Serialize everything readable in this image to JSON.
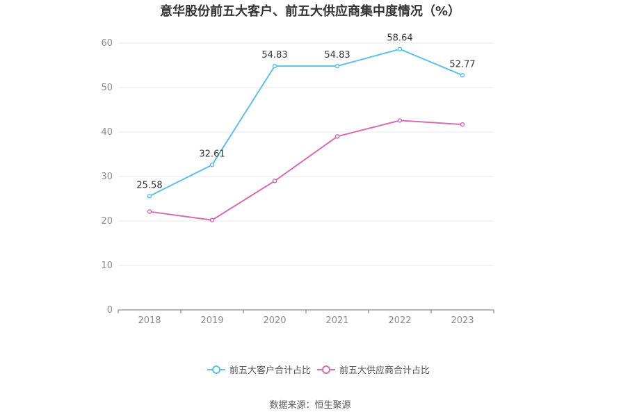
{
  "chart_data": {
    "type": "line",
    "title": "意华股份前五大客户、前五大供应商集中度情况（%）",
    "categories": [
      "2018",
      "2019",
      "2020",
      "2021",
      "2022",
      "2023"
    ],
    "ylim": [
      0,
      60
    ],
    "yticks": [
      "0",
      "10",
      "20",
      "30",
      "40",
      "50",
      "60"
    ],
    "grid": true,
    "legend_position": "bottom-center",
    "series": [
      {
        "name": "前五大客户合计占比",
        "color": "#5bc0eb",
        "values": [
          25.58,
          32.61,
          54.83,
          54.83,
          58.64,
          52.77
        ],
        "labels": [
          "25.58",
          "32.61",
          "54.83",
          "54.83",
          "58.64",
          "52.77"
        ],
        "show_labels": true
      },
      {
        "name": "前五大供应商合计占比",
        "color": "#d86bb4",
        "values": [
          22.1,
          20.2,
          29.0,
          39.0,
          42.6,
          41.7
        ],
        "show_labels": false
      }
    ]
  },
  "source": "数据来源：恒生聚源"
}
